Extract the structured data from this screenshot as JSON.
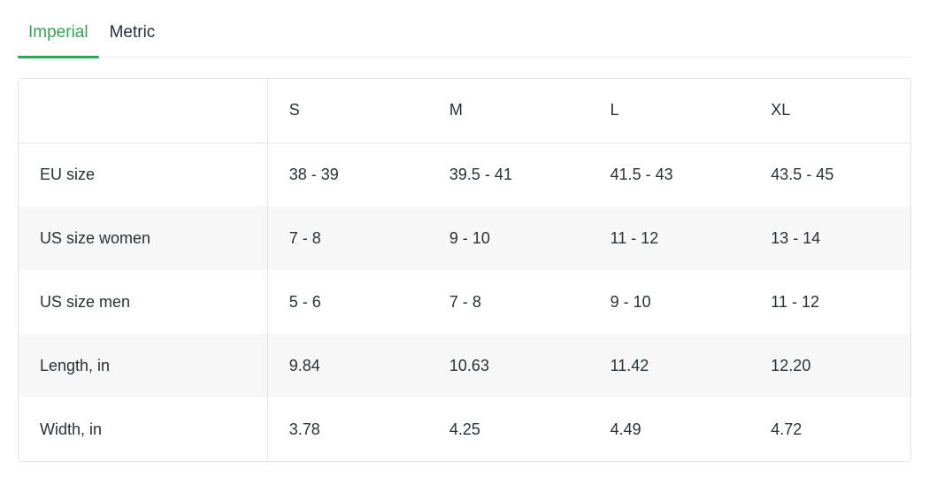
{
  "colors": {
    "accent_green": "#2ea84f",
    "text_dark": "#263238",
    "table_border": "#e2e2e2",
    "zebra_stripe": "#f7f7f8"
  },
  "tabs": {
    "imperial_label": "Imperial",
    "metric_label": "Metric",
    "active_tab": "Imperial"
  },
  "table": {
    "columns": [
      "",
      "S",
      "M",
      "L",
      "XL"
    ],
    "rows": [
      {
        "label": "EU size",
        "values": [
          "38 - 39",
          "39.5 - 41",
          "41.5 - 43",
          "43.5 - 45"
        ]
      },
      {
        "label": "US size women",
        "values": [
          "7 - 8",
          "9 - 10",
          "11 - 12",
          "13 - 14"
        ]
      },
      {
        "label": "US size men",
        "values": [
          "5 - 6",
          "7 - 8",
          "9 - 10",
          "11 - 12"
        ]
      },
      {
        "label": "Length, in",
        "values": [
          "9.84",
          "10.63",
          "11.42",
          "12.20"
        ]
      },
      {
        "label": "Width, in",
        "values": [
          "3.78",
          "4.25",
          "4.49",
          "4.72"
        ]
      }
    ]
  }
}
